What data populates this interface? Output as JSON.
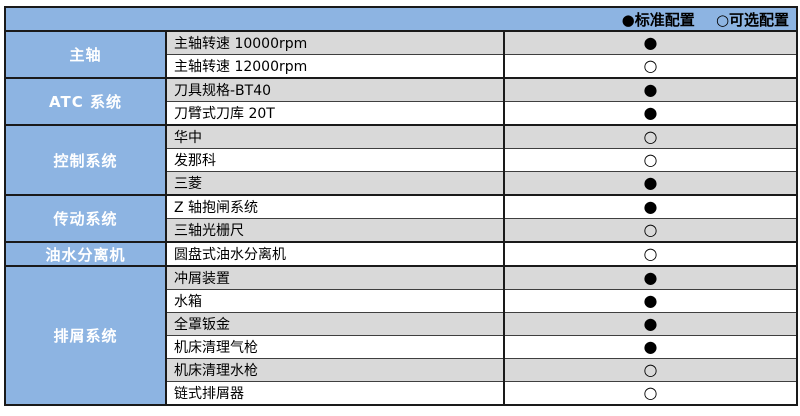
{
  "legend": {
    "standard": "●标准配置",
    "optional": "○可选配置"
  },
  "colors": {
    "header_blue": "#8DB4E2",
    "row_gray": "#D9D9D9",
    "row_white": "#FFFFFF",
    "border_dark": "#1A1A1A",
    "category_text": "#FFFFFF",
    "body_text": "#000000"
  },
  "categories": [
    {
      "label": "主轴",
      "items": [
        {
          "name": "主轴转速 10000rpm",
          "config": "standard",
          "symbol": "●"
        },
        {
          "name": "主轴转速 12000rpm",
          "config": "optional",
          "symbol": "○"
        }
      ]
    },
    {
      "label": "ATC 系统",
      "items": [
        {
          "name": "刀具规格-BT40",
          "config": "standard",
          "symbol": "●"
        },
        {
          "name": "刀臂式刀库 20T",
          "config": "standard",
          "symbol": "●"
        }
      ]
    },
    {
      "label": "控制系统",
      "items": [
        {
          "name": "华中",
          "config": "optional",
          "symbol": "○"
        },
        {
          "name": "发那科",
          "config": "optional",
          "symbol": "○"
        },
        {
          "name": "三菱",
          "config": "standard",
          "symbol": "●"
        }
      ]
    },
    {
      "label": "传动系统",
      "items": [
        {
          "name": "Z 轴抱闸系统",
          "config": "standard",
          "symbol": "●"
        },
        {
          "name": "三轴光栅尺",
          "config": "optional",
          "symbol": "○"
        }
      ]
    },
    {
      "label": "油水分离机",
      "items": [
        {
          "name": "圆盘式油水分离机",
          "config": "optional",
          "symbol": "○"
        }
      ]
    },
    {
      "label": "排屑系统",
      "items": [
        {
          "name": "冲屑装置",
          "config": "standard",
          "symbol": "●"
        },
        {
          "name": "水箱",
          "config": "standard",
          "symbol": "●"
        },
        {
          "name": "全罩钣金",
          "config": "standard",
          "symbol": "●"
        },
        {
          "name": "机床清理气枪",
          "config": "standard",
          "symbol": "●"
        },
        {
          "name": "机床清理水枪",
          "config": "optional",
          "symbol": "○"
        },
        {
          "name": "链式排屑器",
          "config": "optional",
          "symbol": "○"
        }
      ]
    }
  ]
}
